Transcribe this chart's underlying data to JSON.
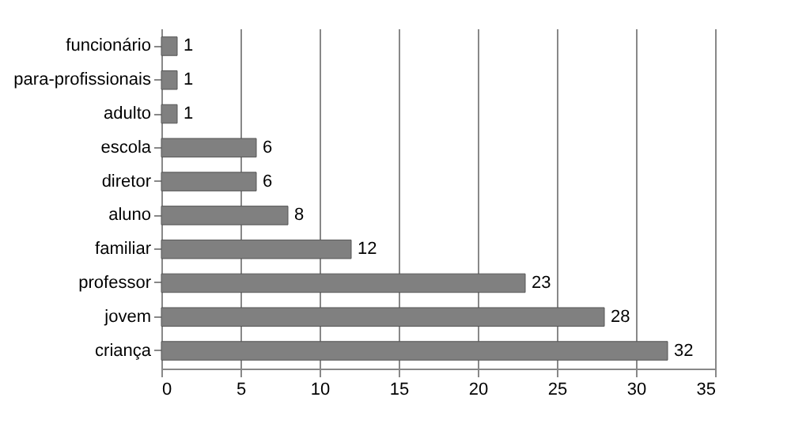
{
  "chart_data": {
    "type": "bar",
    "orientation": "horizontal",
    "categories": [
      "funcionário",
      "para-profissionais",
      "adulto",
      "escola",
      "diretor",
      "aluno",
      "familiar",
      "professor",
      "jovem",
      "criança"
    ],
    "values": [
      1,
      1,
      1,
      6,
      6,
      8,
      12,
      23,
      28,
      32
    ],
    "color": "#808080",
    "xlim": [
      0,
      35
    ],
    "xticks": [
      0,
      5,
      10,
      15,
      20,
      25,
      30,
      35
    ],
    "grid": "x",
    "data_labels": true
  }
}
